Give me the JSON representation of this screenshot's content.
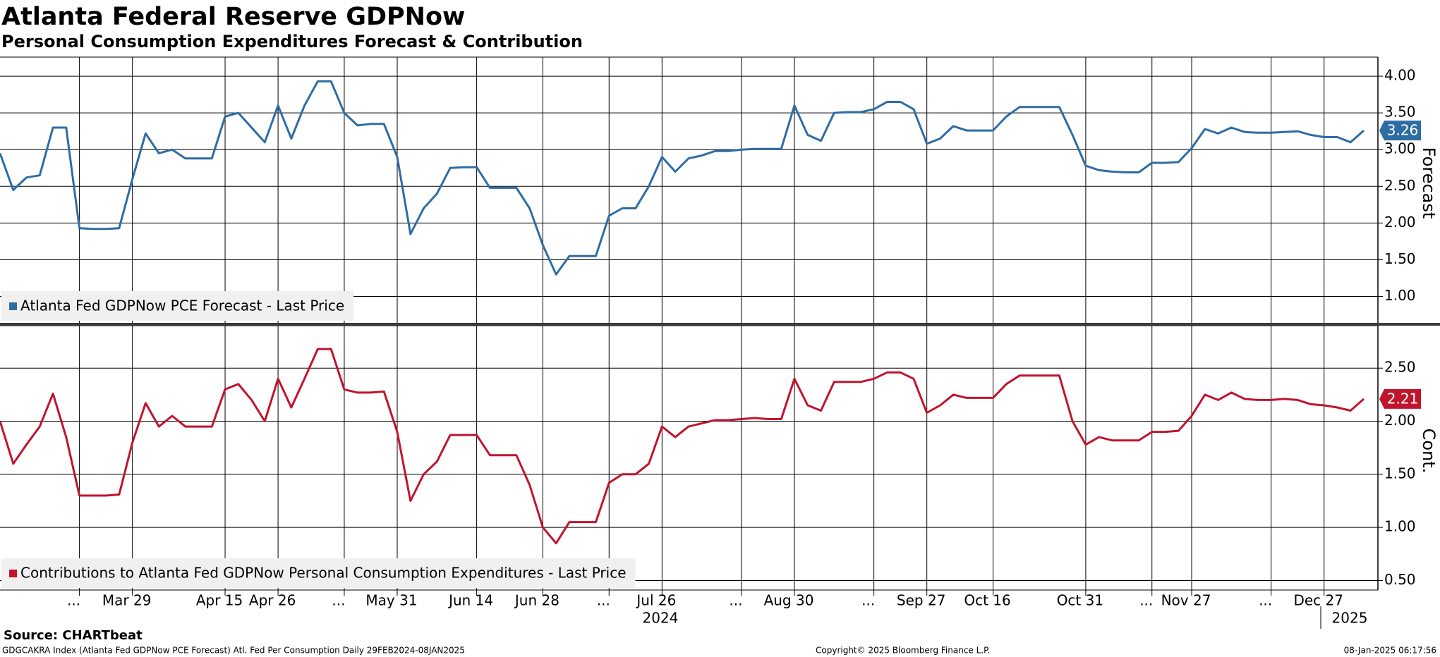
{
  "chart_data": [
    {
      "type": "line",
      "title": "Atlanta Federal Reserve GDPNow",
      "subtitle": "Personal Consumption Expenditures Forecast & Contribution",
      "y_label": "Forecast",
      "ylim": [
        0.64,
        4.26
      ],
      "yticks": [
        {
          "value": 1,
          "label": "1.00"
        },
        {
          "value": 1.5,
          "label": "1.50"
        },
        {
          "value": 2,
          "label": "2.00"
        },
        {
          "value": 2.5,
          "label": "2.50"
        },
        {
          "value": 3,
          "label": "3.00"
        },
        {
          "value": 3.5,
          "label": "3.50"
        },
        {
          "value": 4,
          "label": "4.00"
        }
      ],
      "grid": true,
      "legend": "lower left",
      "series": [
        {
          "name": "Atlanta Fed GDPNow PCE Forecast - Last Price",
          "color": "#2e6da4",
          "values": [
            2.95,
            2.45,
            2.62,
            2.65,
            3.3,
            3.3,
            1.93,
            1.92,
            1.92,
            1.93,
            2.6,
            3.22,
            2.95,
            3.0,
            2.88,
            2.88,
            2.88,
            3.45,
            3.5,
            3.3,
            3.1,
            3.6,
            3.15,
            3.6,
            3.93,
            3.93,
            3.5,
            3.33,
            3.35,
            3.35,
            2.9,
            1.85,
            2.2,
            2.4,
            2.75,
            2.76,
            2.76,
            2.48,
            2.48,
            2.48,
            2.2,
            1.7,
            1.3,
            1.55,
            1.55,
            1.55,
            2.1,
            2.2,
            2.2,
            2.5,
            2.9,
            2.7,
            2.88,
            2.92,
            2.98,
            2.98,
            3.0,
            3.01,
            3.01,
            3.01,
            3.6,
            3.2,
            3.12,
            3.5,
            3.51,
            3.51,
            3.55,
            3.65,
            3.65,
            3.55,
            3.08,
            3.15,
            3.32,
            3.26,
            3.26,
            3.26,
            3.45,
            3.58,
            3.58,
            3.58,
            3.58,
            3.2,
            2.78,
            2.72,
            2.7,
            2.69,
            2.69,
            2.82,
            2.82,
            2.83,
            3.02,
            3.28,
            3.22,
            3.3,
            3.24,
            3.23,
            3.23,
            3.24,
            3.25,
            3.2,
            3.17,
            3.17,
            3.1,
            3.26
          ]
        }
      ]
    },
    {
      "type": "line",
      "y_label": "Cont.",
      "ylim": [
        0.41,
        2.9
      ],
      "yticks": [
        {
          "value": 0.5,
          "label": "0.50"
        },
        {
          "value": 1,
          "label": "1.00"
        },
        {
          "value": 1.5,
          "label": "1.50"
        },
        {
          "value": 2,
          "label": "2.00"
        },
        {
          "value": 2.5,
          "label": "2.50"
        }
      ],
      "grid": true,
      "legend": "lower left",
      "categories": [
        null,
        null,
        null,
        null,
        null,
        null,
        "...",
        null,
        null,
        null,
        "Mar 29",
        null,
        null,
        null,
        null,
        null,
        null,
        "Apr 15",
        null,
        null,
        null,
        "Apr 26",
        null,
        null,
        null,
        null,
        "...",
        null,
        null,
        null,
        "May 31",
        null,
        null,
        null,
        null,
        null,
        "Jun 14",
        null,
        null,
        null,
        null,
        "Jun 28",
        null,
        null,
        null,
        null,
        "...",
        null,
        null,
        null,
        "Jul 26",
        null,
        null,
        null,
        null,
        null,
        "...",
        null,
        null,
        null,
        "Aug 30",
        null,
        null,
        null,
        null,
        null,
        "...",
        null,
        null,
        null,
        "Sep 27",
        null,
        null,
        null,
        null,
        "Oct 16",
        null,
        null,
        null,
        null,
        null,
        null,
        "Oct 31",
        null,
        null,
        null,
        null,
        "...",
        null,
        null,
        "Nov 27",
        null,
        null,
        null,
        null,
        null,
        "...",
        null,
        null,
        null,
        "Dec 27",
        null,
        null,
        null
      ],
      "x_groups": [
        "2024",
        "2025"
      ],
      "series": [
        {
          "name": "Contributions to Atlanta Fed GDPNow Personal Consumption Expenditures - Last Price",
          "color": "#c0152f",
          "values": [
            2.0,
            1.6,
            1.78,
            1.95,
            2.26,
            1.85,
            1.3,
            1.3,
            1.3,
            1.31,
            1.8,
            2.17,
            1.95,
            2.05,
            1.95,
            1.95,
            1.95,
            2.3,
            2.35,
            2.2,
            2.0,
            2.4,
            2.13,
            2.4,
            2.68,
            2.68,
            2.3,
            2.27,
            2.27,
            2.28,
            1.9,
            1.25,
            1.5,
            1.62,
            1.87,
            1.87,
            1.87,
            1.68,
            1.68,
            1.68,
            1.4,
            1.0,
            0.85,
            1.05,
            1.05,
            1.05,
            1.42,
            1.5,
            1.5,
            1.6,
            1.95,
            1.85,
            1.95,
            1.98,
            2.01,
            2.01,
            2.02,
            2.03,
            2.02,
            2.02,
            2.4,
            2.15,
            2.1,
            2.37,
            2.37,
            2.37,
            2.4,
            2.46,
            2.46,
            2.4,
            2.08,
            2.15,
            2.25,
            2.22,
            2.22,
            2.22,
            2.35,
            2.43,
            2.43,
            2.43,
            2.43,
            2.0,
            1.78,
            1.85,
            1.82,
            1.82,
            1.82,
            1.9,
            1.9,
            1.91,
            2.05,
            2.25,
            2.2,
            2.27,
            2.21,
            2.2,
            2.2,
            2.21,
            2.2,
            2.16,
            2.15,
            2.13,
            2.1,
            2.21
          ]
        }
      ]
    }
  ],
  "source": "Source: CHARTbeat",
  "footer": [
    "GDGCAKRA Index (Atlanta Fed GDPNow PCE Forecast) Atl. Fed Per Consumption  Daily 29FEB2024-08JAN2025",
    "Copyright© 2025 Bloomberg Finance L.P.",
    "08-Jan-2025 06:17:56"
  ]
}
